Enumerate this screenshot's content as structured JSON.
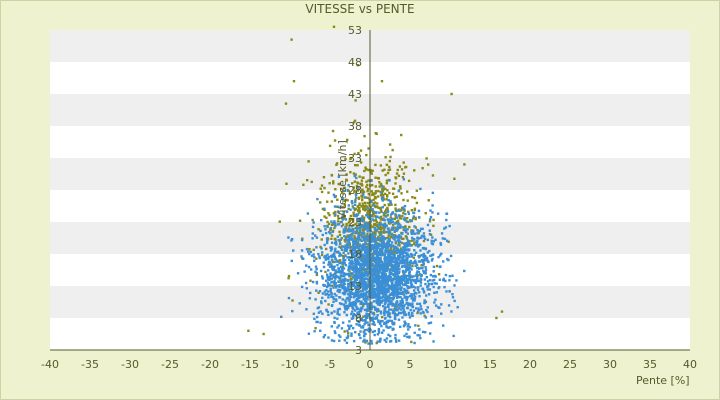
{
  "chart_data": {
    "type": "scatter",
    "title": "VITESSE vs PENTE",
    "xlabel": "Pente [%]",
    "ylabel": "Vitesse [km/h]",
    "xlim": [
      -40,
      40
    ],
    "ylim": [
      3,
      53
    ],
    "xticks": [
      "-40",
      "-35",
      "-30",
      "-25",
      "-20",
      "-15",
      "-10",
      "-5",
      "0",
      "5",
      "10",
      "15",
      "20",
      "25",
      "30",
      "35",
      "40"
    ],
    "yticks": [
      "3",
      "8",
      "13",
      "18",
      "23",
      "28",
      "33",
      "38",
      "43",
      "48",
      "53"
    ],
    "xtick_values": [
      -40,
      -35,
      -30,
      -25,
      -20,
      -15,
      -10,
      -5,
      0,
      5,
      10,
      15,
      20,
      25,
      30,
      35,
      40
    ],
    "ytick_values": [
      3,
      8,
      13,
      18,
      23,
      28,
      33,
      38,
      43,
      48,
      53
    ],
    "grid": "horizontal alternating bands",
    "series": [
      {
        "color": "#3a8fd6",
        "center": [
          0.8,
          15
        ],
        "spread": [
          3.5,
          5.5
        ],
        "count": 2600
      },
      {
        "color": "#8a8a1a",
        "center": [
          0.0,
          22
        ],
        "spread": [
          3.0,
          7.0
        ],
        "count": 900
      }
    ],
    "outliers": [
      {
        "x": -9.8,
        "y": 51.5
      },
      {
        "x": -4.5,
        "y": 53.5
      },
      {
        "x": -9.5,
        "y": 45
      },
      {
        "x": -1.5,
        "y": 47.5
      },
      {
        "x": 1.5,
        "y": 45
      },
      {
        "x": 10.2,
        "y": 43
      },
      {
        "x": -10.5,
        "y": 41.5
      },
      {
        "x": -1.8,
        "y": 42
      },
      {
        "x": 11.8,
        "y": 32
      },
      {
        "x": 16.5,
        "y": 9
      },
      {
        "x": 15.8,
        "y": 8
      },
      {
        "x": -15.2,
        "y": 6
      },
      {
        "x": -13.3,
        "y": 5.5
      }
    ]
  },
  "colors": {
    "background": "#eef2cf",
    "band_light": "#ffffff",
    "band_dark": "#efefef",
    "axis": "#555a2b"
  }
}
